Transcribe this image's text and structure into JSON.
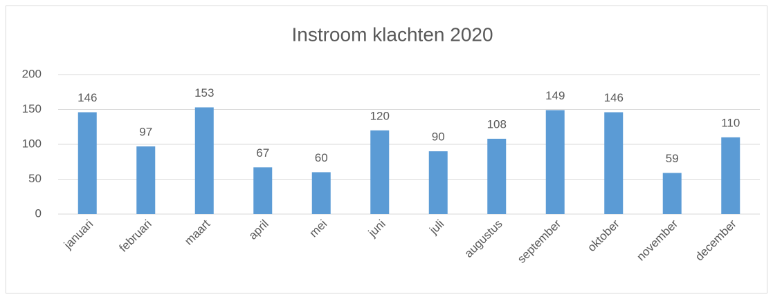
{
  "chart_data": {
    "type": "bar",
    "title": "Instroom klachten 2020",
    "categories": [
      "januari",
      "februari",
      "maart",
      "april",
      "mei",
      "juni",
      "juli",
      "augustus",
      "september",
      "oktober",
      "november",
      "december"
    ],
    "values": [
      146,
      97,
      153,
      67,
      60,
      120,
      90,
      108,
      149,
      146,
      59,
      110
    ],
    "color": "#5b9bd5",
    "ylim": [
      0,
      200
    ],
    "yticks": [
      0,
      50,
      100,
      150,
      200
    ],
    "grid": true
  }
}
